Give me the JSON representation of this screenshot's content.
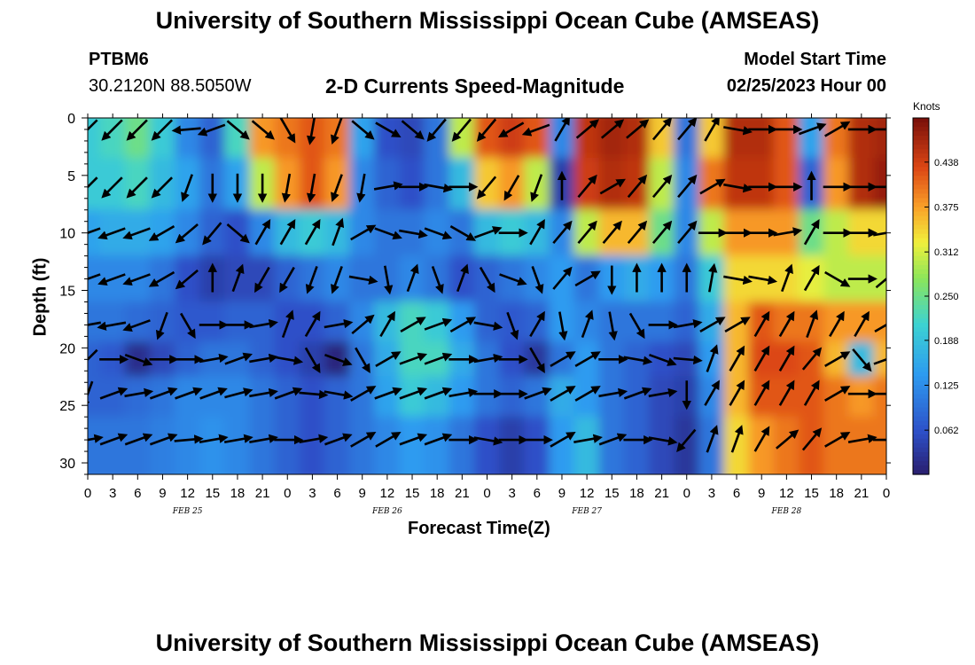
{
  "page": {
    "title": "University of Southern Mississippi Ocean Cube (AMSEAS)",
    "title_repeat": "University of Southern Mississippi Ocean Cube (AMSEAS)",
    "station_id": "PTBM6",
    "station_coords": "30.2120N  88.5050W",
    "plot_title": "2-D Currents Speed-Magnitude",
    "model_start_label": "Model Start Time",
    "model_start_value": "02/25/2023 Hour 00"
  },
  "chart_data": {
    "type": "heatmap",
    "title": "2-D Currents Speed-Magnitude",
    "xlabel": "Forecast Time(Z)",
    "ylabel": "Depth (ft)",
    "x_hours_range": [
      0,
      96
    ],
    "x_tick_step_hours": 3,
    "x_tick_labels": [
      "0",
      "3",
      "6",
      "9",
      "12",
      "15",
      "18",
      "21",
      "0",
      "3",
      "6",
      "9",
      "12",
      "15",
      "18",
      "21",
      "0",
      "3",
      "6",
      "9",
      "12",
      "15",
      "18",
      "21",
      "0",
      "3",
      "6",
      "9",
      "12",
      "15",
      "18",
      "21",
      "0"
    ],
    "date_labels": [
      {
        "hour": 12,
        "text": "FEB 25"
      },
      {
        "hour": 36,
        "text": "FEB 26"
      },
      {
        "hour": 60,
        "text": "FEB 27"
      },
      {
        "hour": 84,
        "text": "FEB 28"
      }
    ],
    "ylim": [
      0,
      31
    ],
    "y_inverted": true,
    "y_ticks": [
      0,
      5,
      10,
      15,
      20,
      25,
      30
    ],
    "colorbar": {
      "unit": "Knots",
      "min": 0.0,
      "max": 0.5,
      "tick_values": [
        0.438,
        0.375,
        0.312,
        0.25,
        0.188,
        0.125,
        0.062
      ],
      "tick_labels": [
        "0.438",
        "0.375",
        "0.312",
        "0.250",
        "0.188",
        "0.125",
        "0.062"
      ]
    },
    "vector_depths_ft": [
      1,
      6,
      10,
      14,
      18,
      21,
      24,
      28
    ],
    "speed_columns": [
      {
        "hour": 0,
        "speeds": [
          0.2,
          0.2,
          0.15,
          0.12,
          0.1,
          0.08,
          0.08,
          0.1
        ]
      },
      {
        "hour": 3,
        "speeds": [
          0.22,
          0.2,
          0.16,
          0.12,
          0.1,
          0.07,
          0.08,
          0.1
        ]
      },
      {
        "hour": 6,
        "speeds": [
          0.25,
          0.22,
          0.16,
          0.12,
          0.09,
          0.02,
          0.09,
          0.1
        ]
      },
      {
        "hour": 9,
        "speeds": [
          0.2,
          0.18,
          0.15,
          0.1,
          0.08,
          0.05,
          0.1,
          0.11
        ]
      },
      {
        "hour": 12,
        "speeds": [
          0.12,
          0.15,
          0.12,
          0.06,
          0.07,
          0.08,
          0.12,
          0.12
        ]
      },
      {
        "hour": 15,
        "speeds": [
          0.08,
          0.1,
          0.08,
          0.04,
          0.07,
          0.1,
          0.12,
          0.13
        ]
      },
      {
        "hour": 18,
        "speeds": [
          0.22,
          0.15,
          0.06,
          0.05,
          0.08,
          0.1,
          0.12,
          0.12
        ]
      },
      {
        "hour": 21,
        "speeds": [
          0.38,
          0.3,
          0.12,
          0.05,
          0.08,
          0.08,
          0.1,
          0.1
        ]
      },
      {
        "hour": 24,
        "speeds": [
          0.4,
          0.38,
          0.18,
          0.08,
          0.06,
          0.06,
          0.08,
          0.08
        ]
      },
      {
        "hour": 27,
        "speeds": [
          0.42,
          0.42,
          0.2,
          0.1,
          0.06,
          0.04,
          0.06,
          0.06
        ]
      },
      {
        "hour": 30,
        "speeds": [
          0.4,
          0.38,
          0.18,
          0.12,
          0.08,
          0.01,
          0.08,
          0.08
        ]
      },
      {
        "hour": 33,
        "speeds": [
          0.15,
          0.12,
          0.12,
          0.1,
          0.12,
          0.1,
          0.1,
          0.1
        ]
      },
      {
        "hour": 36,
        "speeds": [
          0.06,
          0.08,
          0.1,
          0.1,
          0.18,
          0.16,
          0.15,
          0.12
        ]
      },
      {
        "hour": 39,
        "speeds": [
          0.05,
          0.06,
          0.1,
          0.12,
          0.22,
          0.22,
          0.2,
          0.14
        ]
      },
      {
        "hour": 42,
        "speeds": [
          0.1,
          0.1,
          0.12,
          0.1,
          0.2,
          0.22,
          0.18,
          0.13
        ]
      },
      {
        "hour": 45,
        "speeds": [
          0.3,
          0.18,
          0.1,
          0.06,
          0.14,
          0.16,
          0.14,
          0.1
        ]
      },
      {
        "hour": 48,
        "speeds": [
          0.42,
          0.35,
          0.18,
          0.08,
          0.08,
          0.1,
          0.1,
          0.06
        ]
      },
      {
        "hour": 51,
        "speeds": [
          0.44,
          0.38,
          0.2,
          0.1,
          0.07,
          0.06,
          0.08,
          0.04
        ]
      },
      {
        "hour": 54,
        "speeds": [
          0.42,
          0.3,
          0.18,
          0.12,
          0.08,
          0.03,
          0.1,
          0.06
        ]
      },
      {
        "hour": 57,
        "speeds": [
          0.12,
          0.04,
          0.12,
          0.14,
          0.14,
          0.1,
          0.16,
          0.14
        ]
      },
      {
        "hour": 60,
        "speeds": [
          0.45,
          0.44,
          0.3,
          0.1,
          0.12,
          0.14,
          0.14,
          0.18
        ]
      },
      {
        "hour": 63,
        "speeds": [
          0.47,
          0.46,
          0.36,
          0.14,
          0.1,
          0.1,
          0.1,
          0.1
        ]
      },
      {
        "hour": 66,
        "speeds": [
          0.46,
          0.45,
          0.36,
          0.16,
          0.1,
          0.08,
          0.08,
          0.08
        ]
      },
      {
        "hour": 69,
        "speeds": [
          0.35,
          0.3,
          0.25,
          0.14,
          0.1,
          0.06,
          0.05,
          0.05
        ]
      },
      {
        "hour": 72,
        "speeds": [
          0.1,
          0.12,
          0.12,
          0.1,
          0.08,
          0.05,
          0.04,
          0.03
        ]
      },
      {
        "hour": 75,
        "speeds": [
          0.35,
          0.4,
          0.3,
          0.2,
          0.16,
          0.14,
          0.12,
          0.1
        ]
      },
      {
        "hour": 78,
        "speeds": [
          0.46,
          0.45,
          0.38,
          0.34,
          0.36,
          0.36,
          0.36,
          0.34
        ]
      },
      {
        "hour": 81,
        "speeds": [
          0.46,
          0.45,
          0.38,
          0.34,
          0.42,
          0.43,
          0.42,
          0.38
        ]
      },
      {
        "hour": 84,
        "speeds": [
          0.42,
          0.42,
          0.38,
          0.34,
          0.4,
          0.43,
          0.42,
          0.4
        ]
      },
      {
        "hour": 87,
        "speeds": [
          0.15,
          0.08,
          0.25,
          0.32,
          0.4,
          0.42,
          0.42,
          0.42
        ]
      },
      {
        "hour": 90,
        "speeds": [
          0.4,
          0.38,
          0.3,
          0.3,
          0.38,
          0.36,
          0.4,
          0.4
        ]
      },
      {
        "hour": 93,
        "speeds": [
          0.46,
          0.46,
          0.34,
          0.3,
          0.38,
          0.18,
          0.38,
          0.4
        ]
      },
      {
        "hour": 96,
        "speeds": [
          0.47,
          0.48,
          0.34,
          0.3,
          0.38,
          0.36,
          0.4,
          0.4
        ]
      }
    ],
    "direction_columns_deg": [
      {
        "hour": 0,
        "dirs": [
          225,
          225,
          250,
          250,
          260,
          225,
          200,
          80
        ]
      },
      {
        "hour": 3,
        "dirs": [
          225,
          225,
          250,
          250,
          260,
          90,
          70,
          70
        ]
      },
      {
        "hour": 6,
        "dirs": [
          225,
          225,
          250,
          250,
          250,
          110,
          80,
          70
        ]
      },
      {
        "hour": 9,
        "dirs": [
          225,
          225,
          240,
          240,
          200,
          90,
          70,
          70
        ]
      },
      {
        "hour": 12,
        "dirs": [
          265,
          200,
          230,
          230,
          150,
          90,
          70,
          85
        ]
      },
      {
        "hour": 15,
        "dirs": [
          250,
          180,
          220,
          0,
          90,
          80,
          70,
          80
        ]
      },
      {
        "hour": 18,
        "dirs": [
          130,
          180,
          130,
          20,
          90,
          70,
          75,
          80
        ]
      },
      {
        "hour": 21,
        "dirs": [
          130,
          180,
          30,
          210,
          80,
          80,
          80,
          80
        ]
      },
      {
        "hour": 24,
        "dirs": [
          150,
          190,
          30,
          210,
          20,
          100,
          70,
          90
        ]
      },
      {
        "hour": 27,
        "dirs": [
          190,
          190,
          30,
          200,
          30,
          150,
          95,
          80
        ]
      },
      {
        "hour": 30,
        "dirs": [
          200,
          200,
          20,
          200,
          80,
          110,
          100,
          70
        ]
      },
      {
        "hour": 33,
        "dirs": [
          130,
          190,
          60,
          100,
          50,
          150,
          60,
          60
        ]
      },
      {
        "hour": 36,
        "dirs": [
          120,
          80,
          110,
          170,
          30,
          60,
          70,
          60
        ]
      },
      {
        "hour": 39,
        "dirs": [
          130,
          90,
          100,
          20,
          60,
          70,
          70,
          70
        ]
      },
      {
        "hour": 42,
        "dirs": [
          220,
          100,
          110,
          160,
          70,
          70,
          70,
          70
        ]
      },
      {
        "hour": 45,
        "dirs": [
          220,
          90,
          120,
          20,
          60,
          90,
          80,
          90
        ]
      },
      {
        "hour": 48,
        "dirs": [
          220,
          220,
          70,
          150,
          100,
          80,
          90,
          100
        ]
      },
      {
        "hour": 51,
        "dirs": [
          240,
          210,
          90,
          110,
          160,
          90,
          90,
          90
        ]
      },
      {
        "hour": 54,
        "dirs": [
          250,
          200,
          30,
          160,
          30,
          150,
          70,
          90
        ]
      },
      {
        "hour": 57,
        "dirs": [
          30,
          0,
          40,
          40,
          170,
          60,
          60,
          60
        ]
      },
      {
        "hour": 60,
        "dirs": [
          50,
          40,
          40,
          60,
          20,
          60,
          60,
          80
        ]
      },
      {
        "hour": 63,
        "dirs": [
          50,
          60,
          40,
          180,
          170,
          90,
          80,
          70
        ]
      },
      {
        "hour": 66,
        "dirs": [
          50,
          40,
          40,
          0,
          150,
          100,
          70,
          90
        ]
      },
      {
        "hour": 69,
        "dirs": [
          40,
          40,
          40,
          0,
          90,
          110,
          80,
          100
        ]
      },
      {
        "hour": 72,
        "dirs": [
          40,
          40,
          40,
          0,
          80,
          95,
          180,
          220
        ]
      },
      {
        "hour": 75,
        "dirs": [
          30,
          60,
          90,
          10,
          60,
          20,
          30,
          20
        ]
      },
      {
        "hour": 78,
        "dirs": [
          100,
          100,
          90,
          100,
          60,
          30,
          30,
          20
        ]
      },
      {
        "hour": 81,
        "dirs": [
          90,
          90,
          90,
          100,
          30,
          30,
          30,
          30
        ]
      },
      {
        "hour": 84,
        "dirs": [
          90,
          90,
          80,
          20,
          30,
          30,
          30,
          50
        ]
      },
      {
        "hour": 87,
        "dirs": [
          70,
          0,
          30,
          30,
          20,
          40,
          30,
          40
        ]
      },
      {
        "hour": 90,
        "dirs": [
          60,
          90,
          90,
          120,
          30,
          60,
          60,
          60
        ]
      },
      {
        "hour": 93,
        "dirs": [
          90,
          90,
          90,
          90,
          30,
          140,
          90,
          80
        ]
      },
      {
        "hour": 96,
        "dirs": [
          90,
          90,
          80,
          50,
          60,
          70,
          90,
          90
        ]
      }
    ],
    "grid": false,
    "legend": "colorbar-right"
  }
}
